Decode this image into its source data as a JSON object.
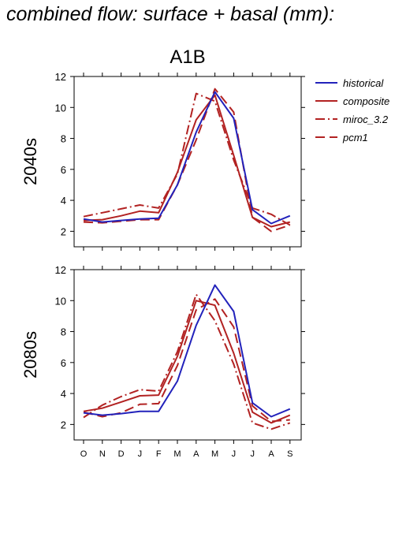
{
  "page_title": "combined flow: surface + basal (mm):",
  "scenario_title": "A1B",
  "colors": {
    "historical": "#2222bb",
    "scenario": "#b22222"
  },
  "chart_data": {
    "type": "line",
    "title": "A1B",
    "xlabel": "",
    "categories": [
      "O",
      "N",
      "D",
      "J",
      "F",
      "M",
      "A",
      "M",
      "J",
      "J",
      "A",
      "S"
    ],
    "ylim": [
      1,
      12
    ],
    "yticks": [
      2,
      4,
      6,
      8,
      10,
      12
    ],
    "grid": false,
    "legend_position": "top-right",
    "legend": [
      {
        "label": "historical",
        "color": "#2222bb",
        "dash": "solid"
      },
      {
        "label": "composite",
        "color": "#b22222",
        "dash": "solid"
      },
      {
        "label": "miroc_3.2",
        "color": "#b22222",
        "dash": "dashdot"
      },
      {
        "label": "pcm1",
        "color": "#b22222",
        "dash": "dashed"
      }
    ],
    "panels": [
      {
        "ylabel": "2040s",
        "series": [
          {
            "name": "historical",
            "values": [
              2.8,
              2.6,
              2.7,
              2.8,
              2.85,
              5.0,
              8.4,
              11.0,
              9.3,
              3.4,
              2.5,
              3.0
            ]
          },
          {
            "name": "composite",
            "values": [
              2.7,
              2.75,
              3.0,
              3.3,
              3.2,
              5.8,
              9.2,
              10.8,
              6.9,
              2.9,
              2.3,
              2.6
            ]
          },
          {
            "name": "miroc_3.2",
            "values": [
              2.95,
              3.2,
              3.45,
              3.7,
              3.5,
              5.7,
              10.9,
              10.4,
              6.6,
              3.5,
              3.1,
              2.4
            ]
          },
          {
            "name": "pcm1",
            "values": [
              2.6,
              2.55,
              2.65,
              2.75,
              2.75,
              5.0,
              7.9,
              11.2,
              9.7,
              2.9,
              2.0,
              2.4
            ]
          }
        ]
      },
      {
        "ylabel": "2080s",
        "series": [
          {
            "name": "historical",
            "values": [
              2.75,
              2.6,
              2.7,
              2.85,
              2.85,
              4.8,
              8.4,
              11.0,
              9.3,
              3.4,
              2.5,
              3.0
            ]
          },
          {
            "name": "composite",
            "values": [
              2.85,
              3.05,
              3.45,
              3.85,
              3.9,
              6.4,
              10.0,
              9.7,
              6.6,
              2.8,
              2.1,
              2.6
            ]
          },
          {
            "name": "miroc_3.2",
            "values": [
              2.45,
              3.25,
              3.8,
              4.25,
              4.15,
              6.7,
              10.4,
              8.7,
              5.9,
              2.1,
              1.7,
              2.1
            ]
          },
          {
            "name": "pcm1",
            "values": [
              2.8,
              2.5,
              2.75,
              3.3,
              3.35,
              5.8,
              9.4,
              10.1,
              8.3,
              3.2,
              2.2,
              2.3
            ]
          }
        ]
      }
    ]
  }
}
